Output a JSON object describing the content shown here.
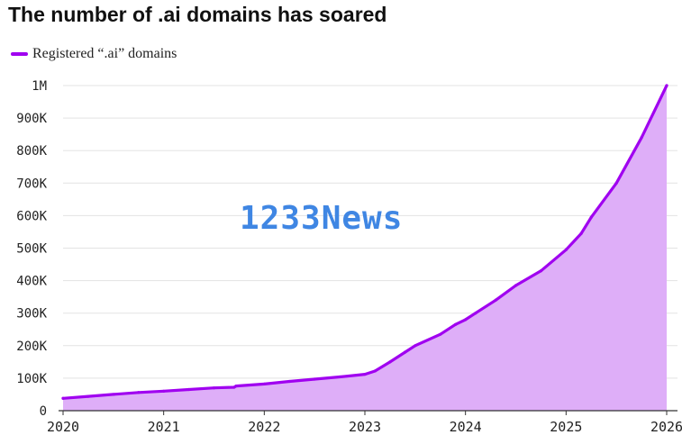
{
  "title": "The number of .ai domains has soared",
  "watermark": "1233News",
  "colors": {
    "line": "#a000f0",
    "fill": "#deaef8",
    "grid": "#e3e3e3",
    "axis": "#333333",
    "watermark": "#3f86e3"
  },
  "chart_data": {
    "type": "area",
    "title": "The number of .ai domains has soared",
    "xlabel": "",
    "ylabel": "",
    "legend": {
      "position": "top-left",
      "entries": [
        "Registered “.ai” domains"
      ]
    },
    "grid": true,
    "x_ticks": [
      "2020",
      "2021",
      "2022",
      "2023",
      "2024",
      "2025",
      "2026"
    ],
    "y_ticks": [
      "0",
      "100K",
      "200K",
      "300K",
      "400K",
      "500K",
      "600K",
      "700K",
      "800K",
      "900K",
      "1M"
    ],
    "y_tick_values": [
      0,
      100000,
      200000,
      300000,
      400000,
      500000,
      600000,
      700000,
      800000,
      900000,
      1000000
    ],
    "xlim": [
      2020,
      2026
    ],
    "ylim": [
      0,
      1000000
    ],
    "series": [
      {
        "name": "Registered “.ai” domains",
        "x": [
          2020.0,
          2020.25,
          2020.5,
          2020.75,
          2021.0,
          2021.25,
          2021.5,
          2021.7,
          2021.72,
          2022.0,
          2022.25,
          2022.5,
          2022.75,
          2023.0,
          2023.1,
          2023.25,
          2023.4,
          2023.5,
          2023.75,
          2023.9,
          2024.0,
          2024.1,
          2024.3,
          2024.5,
          2024.75,
          2025.0,
          2025.15,
          2025.25,
          2025.5,
          2025.75,
          2026.0
        ],
        "y": [
          38000,
          44000,
          50000,
          56000,
          60000,
          65000,
          70000,
          72000,
          76000,
          82000,
          90000,
          97000,
          104000,
          112000,
          122000,
          150000,
          180000,
          200000,
          235000,
          265000,
          280000,
          300000,
          340000,
          385000,
          430000,
          495000,
          545000,
          595000,
          700000,
          840000,
          1000000
        ]
      }
    ]
  }
}
